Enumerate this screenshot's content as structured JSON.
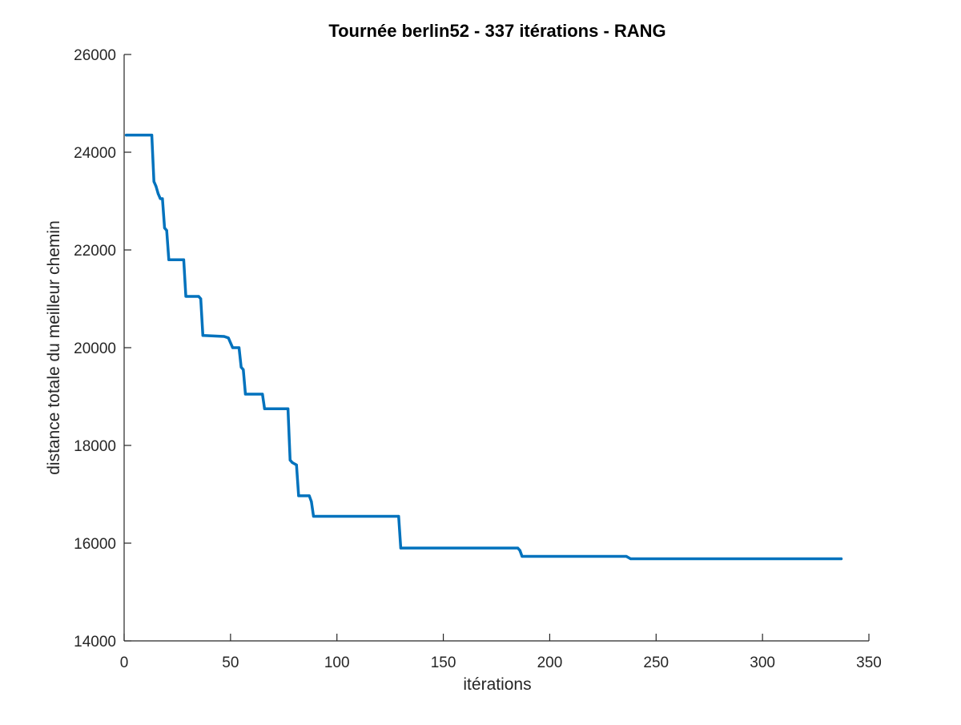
{
  "chart_data": {
    "type": "line",
    "title": "Tournée berlin52 - 337 itérations - RANG",
    "xlabel": "itérations",
    "ylabel": "distance totale du meilleur chemin",
    "xlim": [
      0,
      350
    ],
    "ylim": [
      14000,
      26000
    ],
    "x_ticks": [
      0,
      50,
      100,
      150,
      200,
      250,
      300,
      350
    ],
    "y_ticks": [
      14000,
      16000,
      18000,
      20000,
      22000,
      24000,
      26000
    ],
    "grid": false,
    "legend": "none",
    "series": [
      {
        "color": "#0072BD",
        "points": [
          [
            1,
            24350
          ],
          [
            13,
            24350
          ],
          [
            14,
            23400
          ],
          [
            15,
            23300
          ],
          [
            16,
            23150
          ],
          [
            17,
            23050
          ],
          [
            18,
            23050
          ],
          [
            19,
            22450
          ],
          [
            20,
            22400
          ],
          [
            21,
            21800
          ],
          [
            28,
            21800
          ],
          [
            29,
            21050
          ],
          [
            35,
            21050
          ],
          [
            36,
            21000
          ],
          [
            37,
            20250
          ],
          [
            47,
            20230
          ],
          [
            49,
            20200
          ],
          [
            51,
            20000
          ],
          [
            54,
            20000
          ],
          [
            55,
            19600
          ],
          [
            56,
            19550
          ],
          [
            57,
            19050
          ],
          [
            65,
            19050
          ],
          [
            66,
            18750
          ],
          [
            77,
            18750
          ],
          [
            78,
            17700
          ],
          [
            79,
            17650
          ],
          [
            81,
            17600
          ],
          [
            82,
            16970
          ],
          [
            87,
            16970
          ],
          [
            88,
            16850
          ],
          [
            89,
            16550
          ],
          [
            129,
            16550
          ],
          [
            130,
            15900
          ],
          [
            185,
            15900
          ],
          [
            186,
            15850
          ],
          [
            187,
            15730
          ],
          [
            236,
            15730
          ],
          [
            238,
            15680
          ],
          [
            337,
            15680
          ]
        ]
      }
    ]
  }
}
